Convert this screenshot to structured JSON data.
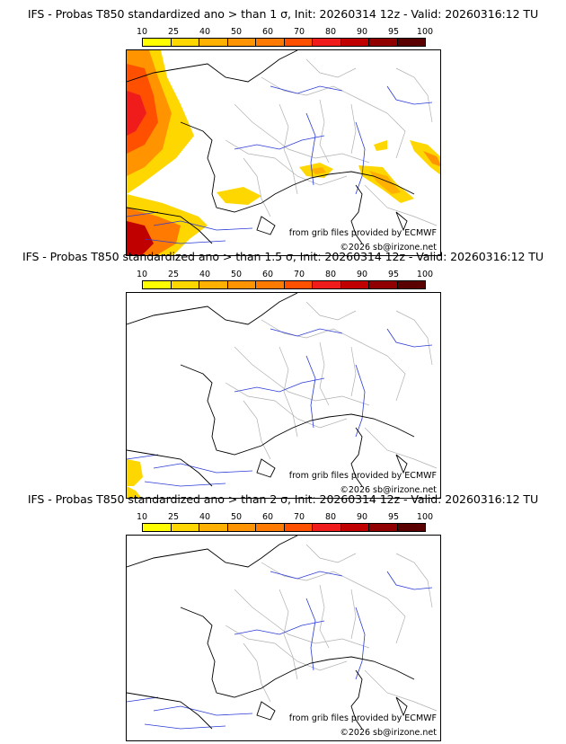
{
  "panels": [
    {
      "title": "IFS - Probas T850  standardized ano > than 1 σ, Init: 20260314 12z - Valid: 20260316:12 TU",
      "probability_regions": "strong",
      "credits": [
        "from grib files provided by ECMWF",
        "©2026 sb@irizone.net"
      ]
    },
    {
      "title": "IFS - Probas T850  standardized ano > than 1.5 σ, Init: 20260314 12z - Valid: 20260316:12 TU",
      "probability_regions": "weak",
      "credits": [
        "from grib files provided by ECMWF",
        "©2026 sb@irizone.net"
      ]
    },
    {
      "title": "IFS - Probas T850  standardized ano > than 2 σ, Init: 20260314 12z - Valid: 20260316:12 TU",
      "probability_regions": "none",
      "credits": [
        "from grib files provided by ECMWF",
        "©2026 sb@irizone.net"
      ]
    }
  ],
  "legend": {
    "ticks": [
      "10",
      "25",
      "40",
      "50",
      "60",
      "70",
      "80",
      "90",
      "95",
      "100"
    ],
    "colors": [
      "#ffff00",
      "#ffd700",
      "#ffb000",
      "#ff9400",
      "#ff7a00",
      "#ff5000",
      "#f01c1c",
      "#c00000",
      "#900000",
      "#5a0000"
    ]
  },
  "map_colors": {
    "coast": "#000000",
    "borders": "#b0b0b0",
    "rivers": "#2b3bd6"
  }
}
